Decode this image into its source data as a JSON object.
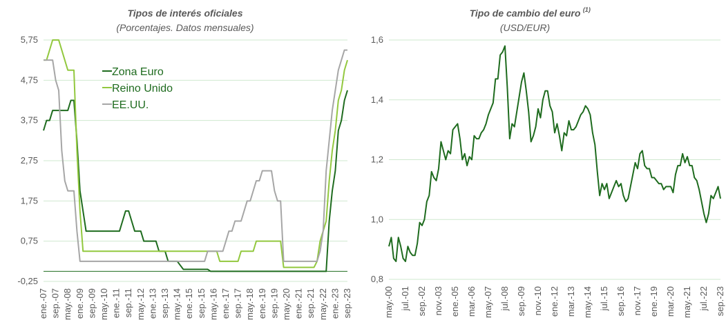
{
  "chart_data": [
    {
      "type": "line",
      "title": "Tipos de interés oficiales",
      "subtitle": "(Porcentajes. Datos mensuales)",
      "categories": [
        "ene.-07",
        null,
        null,
        null,
        "sep.-07",
        null,
        null,
        null,
        "may.-08",
        null,
        null,
        null,
        "ene.-09",
        null,
        null,
        null,
        "sep.-09",
        null,
        null,
        null,
        "may.-10",
        null,
        null,
        null,
        "ene.-11",
        null,
        null,
        null,
        "sep.-11",
        null,
        null,
        null,
        "may.-12",
        null,
        null,
        null,
        "ene.-13",
        null,
        null,
        null,
        "sep.-13",
        null,
        null,
        null,
        "may.-14",
        null,
        null,
        null,
        "ene.-15",
        null,
        null,
        null,
        "sep.-15",
        null,
        null,
        null,
        "may.-16",
        null,
        null,
        null,
        "ene.-17",
        null,
        null,
        null,
        "sep.-17",
        null,
        null,
        null,
        "may.-18",
        null,
        null,
        null,
        "ene.-19",
        null,
        null,
        null,
        "sep.-19",
        null,
        null,
        null,
        "may.-20",
        null,
        null,
        null,
        "ene.-21",
        null,
        null,
        null,
        "sep.-21",
        null,
        null,
        null,
        "may.-22",
        null,
        null,
        null,
        "ene.-23",
        null,
        null,
        null,
        "sep.-23"
      ],
      "series": [
        {
          "name": "Zona Euro",
          "color": "#1e6b1e",
          "values": [
            3.5,
            3.75,
            3.75,
            4,
            4,
            4,
            4,
            4,
            4,
            4.25,
            4.25,
            3.25,
            2,
            1.5,
            1,
            1,
            1,
            1,
            1,
            1,
            1,
            1,
            1,
            1,
            1,
            1,
            1.25,
            1.5,
            1.5,
            1.25,
            1,
            1,
            1,
            0.75,
            0.75,
            0.75,
            0.75,
            0.75,
            0.5,
            0.5,
            0.5,
            0.25,
            0.25,
            0.25,
            0.25,
            0.15,
            0.05,
            0.05,
            0.05,
            0.05,
            0.05,
            0.05,
            0.05,
            0.05,
            0.05,
            0,
            0,
            0,
            0,
            0,
            0,
            0,
            0,
            0,
            0,
            0,
            0,
            0,
            0,
            0,
            0,
            0,
            0,
            0,
            0,
            0,
            0,
            0,
            0,
            0,
            0,
            0,
            0,
            0,
            0,
            0,
            0,
            0,
            0,
            0,
            0,
            0,
            0,
            0,
            1.25,
            2,
            2.5,
            3.5,
            3.75,
            4.25,
            4.5
          ]
        },
        {
          "name": "Reino Unido",
          "color": "#92c83e",
          "values": [
            5.25,
            5.25,
            5.5,
            5.75,
            5.75,
            5.75,
            5.5,
            5.25,
            5,
            5,
            5,
            3,
            1.5,
            0.5,
            0.5,
            0.5,
            0.5,
            0.5,
            0.5,
            0.5,
            0.5,
            0.5,
            0.5,
            0.5,
            0.5,
            0.5,
            0.5,
            0.5,
            0.5,
            0.5,
            0.5,
            0.5,
            0.5,
            0.5,
            0.5,
            0.5,
            0.5,
            0.5,
            0.5,
            0.5,
            0.5,
            0.5,
            0.5,
            0.5,
            0.5,
            0.5,
            0.5,
            0.5,
            0.5,
            0.5,
            0.5,
            0.5,
            0.5,
            0.5,
            0.5,
            0.5,
            0.5,
            0.5,
            0.25,
            0.25,
            0.25,
            0.25,
            0.25,
            0.25,
            0.25,
            0.5,
            0.5,
            0.5,
            0.5,
            0.5,
            0.75,
            0.75,
            0.75,
            0.75,
            0.75,
            0.75,
            0.75,
            0.75,
            0.75,
            0.1,
            0.1,
            0.1,
            0.1,
            0.1,
            0.1,
            0.1,
            0.1,
            0.1,
            0.1,
            0.1,
            0.25,
            0.75,
            1,
            1.25,
            2.25,
            3,
            3.5,
            4.25,
            4.5,
            5,
            5.25
          ]
        },
        {
          "name": "EE.UU.",
          "color": "#a6a6a6",
          "values": [
            5.25,
            5.25,
            5.25,
            5.25,
            4.75,
            4.5,
            3,
            2.25,
            2,
            2,
            2,
            1,
            0.25,
            0.25,
            0.25,
            0.25,
            0.25,
            0.25,
            0.25,
            0.25,
            0.25,
            0.25,
            0.25,
            0.25,
            0.25,
            0.25,
            0.25,
            0.25,
            0.25,
            0.25,
            0.25,
            0.25,
            0.25,
            0.25,
            0.25,
            0.25,
            0.25,
            0.25,
            0.25,
            0.25,
            0.25,
            0.25,
            0.25,
            0.25,
            0.25,
            0.25,
            0.25,
            0.25,
            0.25,
            0.25,
            0.25,
            0.25,
            0.25,
            0.25,
            0.5,
            0.5,
            0.5,
            0.5,
            0.5,
            0.5,
            0.75,
            1,
            1,
            1.25,
            1.25,
            1.25,
            1.5,
            1.75,
            1.75,
            2,
            2.25,
            2.25,
            2.5,
            2.5,
            2.5,
            2.5,
            2,
            1.75,
            1.75,
            0.25,
            0.25,
            0.25,
            0.25,
            0.25,
            0.25,
            0.25,
            0.25,
            0.25,
            0.25,
            0.25,
            0.25,
            0.5,
            1,
            2.5,
            3.25,
            4,
            4.5,
            5,
            5.25,
            5.5,
            5.5
          ]
        }
      ],
      "ylim": [
        -0.25,
        5.75
      ],
      "yticks": [
        {
          "value": -0.25,
          "label": "-0,25"
        },
        {
          "value": 0.75,
          "label": "0,75"
        },
        {
          "value": 1.75,
          "label": "1,75"
        },
        {
          "value": 2.75,
          "label": "2,75"
        },
        {
          "value": 3.75,
          "label": "3,75"
        },
        {
          "value": 4.75,
          "label": "4,75"
        },
        {
          "value": 5.75,
          "label": "5,75"
        }
      ],
      "grid": true,
      "legend": "upper left"
    },
    {
      "type": "line",
      "title": "Tipo de cambio del euro",
      "title_note": "(1)",
      "subtitle": "(USD/EUR)",
      "categories": [
        "may.-00",
        null,
        null,
        null,
        null,
        null,
        null,
        "jul.-01",
        null,
        null,
        null,
        null,
        null,
        null,
        "sep.-02",
        null,
        null,
        null,
        null,
        null,
        null,
        "nov.-03",
        null,
        null,
        null,
        null,
        null,
        null,
        "ene.-05",
        null,
        null,
        null,
        null,
        null,
        null,
        "mar.-06",
        null,
        null,
        null,
        null,
        null,
        null,
        "may.-07",
        null,
        null,
        null,
        null,
        null,
        null,
        "jul.-08",
        null,
        null,
        null,
        null,
        null,
        null,
        "sep.-09",
        null,
        null,
        null,
        null,
        null,
        null,
        "nov.-10",
        null,
        null,
        null,
        null,
        null,
        null,
        "ene.-12",
        null,
        null,
        null,
        null,
        null,
        null,
        "mar.-13",
        null,
        null,
        null,
        null,
        null,
        null,
        "may.-14",
        null,
        null,
        null,
        null,
        null,
        null,
        "jul.-15",
        null,
        null,
        null,
        null,
        null,
        null,
        "sep.-16",
        null,
        null,
        null,
        null,
        null,
        null,
        "nov.-17",
        null,
        null,
        null,
        null,
        null,
        null,
        "ene.-19",
        null,
        null,
        null,
        null,
        null,
        null,
        "mar.-20",
        null,
        null,
        null,
        null,
        null,
        null,
        "may.-21",
        null,
        null,
        null,
        null,
        null,
        null,
        "jul.-22",
        null,
        null,
        null,
        null,
        null,
        null,
        "sep.-23"
      ],
      "series": [
        {
          "name": "USD/EUR",
          "color": "#1e6b1e",
          "values": [
            0.91,
            0.94,
            0.87,
            0.86,
            0.94,
            0.91,
            0.87,
            0.86,
            0.91,
            0.89,
            0.88,
            0.88,
            0.92,
            0.99,
            0.98,
            1.0,
            1.06,
            1.08,
            1.16,
            1.14,
            1.13,
            1.17,
            1.26,
            1.23,
            1.2,
            1.23,
            1.22,
            1.3,
            1.31,
            1.32,
            1.27,
            1.2,
            1.22,
            1.18,
            1.21,
            1.2,
            1.28,
            1.27,
            1.27,
            1.29,
            1.3,
            1.32,
            1.35,
            1.37,
            1.39,
            1.47,
            1.47,
            1.55,
            1.56,
            1.58,
            1.44,
            1.27,
            1.32,
            1.31,
            1.36,
            1.41,
            1.46,
            1.49,
            1.43,
            1.36,
            1.26,
            1.28,
            1.31,
            1.37,
            1.34,
            1.4,
            1.43,
            1.43,
            1.38,
            1.36,
            1.29,
            1.32,
            1.28,
            1.23,
            1.29,
            1.28,
            1.33,
            1.3,
            1.3,
            1.31,
            1.33,
            1.35,
            1.36,
            1.38,
            1.37,
            1.35,
            1.29,
            1.25,
            1.16,
            1.08,
            1.12,
            1.1,
            1.12,
            1.07,
            1.09,
            1.11,
            1.13,
            1.11,
            1.12,
            1.08,
            1.06,
            1.07,
            1.11,
            1.15,
            1.19,
            1.17,
            1.22,
            1.23,
            1.18,
            1.17,
            1.17,
            1.14,
            1.14,
            1.13,
            1.12,
            1.12,
            1.1,
            1.11,
            1.11,
            1.11,
            1.09,
            1.15,
            1.18,
            1.18,
            1.22,
            1.19,
            1.21,
            1.18,
            1.18,
            1.14,
            1.13,
            1.1,
            1.06,
            1.02,
            0.99,
            1.02,
            1.08,
            1.07,
            1.09,
            1.11,
            1.07
          ]
        }
      ],
      "ylim": [
        0.8,
        1.6
      ],
      "yticks": [
        {
          "value": 0.8,
          "label": "0,8"
        },
        {
          "value": 1.0,
          "label": "1,0"
        },
        {
          "value": 1.2,
          "label": "1,2"
        },
        {
          "value": 1.4,
          "label": "1,4"
        },
        {
          "value": 1.6,
          "label": "1,6"
        }
      ],
      "grid": true
    }
  ]
}
